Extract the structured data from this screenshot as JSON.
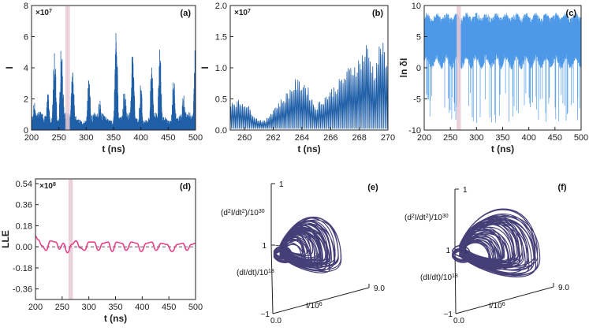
{
  "colors": {
    "trace_blue": "#1f5fa8",
    "lnd_blue": "#3a8ee6",
    "lle_pink": "#e8408a",
    "attractor": "#3b3470",
    "shade": "#e8c9d3",
    "axis": "#222222"
  },
  "chart_data": [
    {
      "id": "a",
      "type": "line",
      "panel_label": "(a)",
      "xlabel": "t (ns)",
      "ylabel": "I",
      "multiplier": "×10",
      "multiplier_exp": "7",
      "xlim": [
        200,
        500
      ],
      "ylim": [
        0,
        8
      ],
      "xticks": [
        200,
        250,
        300,
        350,
        400,
        450,
        500
      ],
      "yticks": [
        0,
        2,
        4,
        6,
        8
      ],
      "highlight_x": [
        262,
        270
      ],
      "burst_peaks": [
        {
          "t": 205,
          "I": 1.8
        },
        {
          "t": 230,
          "I": 2.4
        },
        {
          "t": 242,
          "I": 5.8
        },
        {
          "t": 255,
          "I": 6.1
        },
        {
          "t": 275,
          "I": 4.2
        },
        {
          "t": 305,
          "I": 3.6
        },
        {
          "t": 325,
          "I": 2.2
        },
        {
          "t": 355,
          "I": 6.6
        },
        {
          "t": 370,
          "I": 3.2
        },
        {
          "t": 385,
          "I": 5.6
        },
        {
          "t": 400,
          "I": 3.1
        },
        {
          "t": 420,
          "I": 4.5
        },
        {
          "t": 435,
          "I": 5.5
        },
        {
          "t": 460,
          "I": 3.8
        },
        {
          "t": 478,
          "I": 2.4
        },
        {
          "t": 500,
          "I": 5.9
        }
      ]
    },
    {
      "id": "b",
      "type": "line",
      "panel_label": "(b)",
      "xlabel": "t (ns)",
      "ylabel": "I",
      "multiplier": "×10",
      "multiplier_exp": "7",
      "xlim": [
        259,
        270
      ],
      "ylim": [
        0,
        2.0
      ],
      "xticks": [
        260,
        262,
        264,
        266,
        268,
        270
      ],
      "yticks": [
        0.0,
        0.5,
        1.0,
        1.5,
        2.0
      ],
      "envelope": [
        {
          "t": 259.0,
          "I": 0.5
        },
        {
          "t": 260.0,
          "I": 0.48
        },
        {
          "t": 260.8,
          "I": 0.2
        },
        {
          "t": 261.4,
          "I": 0.15
        },
        {
          "t": 262.0,
          "I": 0.38
        },
        {
          "t": 262.7,
          "I": 0.55
        },
        {
          "t": 263.5,
          "I": 0.82
        },
        {
          "t": 264.2,
          "I": 0.8
        },
        {
          "t": 264.9,
          "I": 0.4
        },
        {
          "t": 265.6,
          "I": 0.58
        },
        {
          "t": 266.5,
          "I": 0.8
        },
        {
          "t": 267.3,
          "I": 1.05
        },
        {
          "t": 268.0,
          "I": 1.2
        },
        {
          "t": 268.5,
          "I": 1.45
        },
        {
          "t": 269.0,
          "I": 1.0
        },
        {
          "t": 269.5,
          "I": 1.55
        },
        {
          "t": 270.0,
          "I": 0.95
        }
      ]
    },
    {
      "id": "c",
      "type": "line",
      "panel_label": "(c)",
      "xlabel": "t (ns)",
      "ylabel": "ln δI",
      "xlim": [
        200,
        500
      ],
      "ylim": [
        -10,
        10
      ],
      "xticks": [
        200,
        250,
        300,
        350,
        400,
        450,
        500
      ],
      "yticks": [
        -10,
        -5,
        0,
        5,
        10
      ],
      "highlight_x": [
        262,
        270
      ],
      "band_upper": 8.5,
      "band_lower": 0.5,
      "min_excursion": -9
    },
    {
      "id": "d",
      "type": "line",
      "panel_label": "(d)",
      "xlabel": "t (ns)",
      "ylabel": "LLE",
      "multiplier": "×10",
      "multiplier_exp": "8",
      "xlim": [
        200,
        500
      ],
      "ylim": [
        -0.45,
        0.58
      ],
      "xticks": [
        200,
        250,
        300,
        350,
        400,
        450,
        500
      ],
      "yticks": [
        0.54,
        0.36,
        0.18,
        0.0,
        -0.18,
        -0.36
      ],
      "ytick_labels": [
        "0.54",
        "0.36",
        "0.18",
        "0.00",
        "-0.18",
        "-0.36"
      ],
      "highlight_x": [
        262,
        270
      ],
      "reference_line_y": 0,
      "points": [
        {
          "t": 200,
          "v": 0.09
        },
        {
          "t": 205,
          "v": 0.06
        },
        {
          "t": 212,
          "v": 0.01
        },
        {
          "t": 220,
          "v": -0.03
        },
        {
          "t": 228,
          "v": 0.05
        },
        {
          "t": 238,
          "v": 0.04
        },
        {
          "t": 245,
          "v": -0.02
        },
        {
          "t": 252,
          "v": 0.03
        },
        {
          "t": 260,
          "v": -0.05
        },
        {
          "t": 268,
          "v": 0.02
        },
        {
          "t": 276,
          "v": 0.05
        },
        {
          "t": 284,
          "v": -0.01
        },
        {
          "t": 292,
          "v": -0.03
        },
        {
          "t": 300,
          "v": 0.04
        },
        {
          "t": 310,
          "v": 0.04
        },
        {
          "t": 318,
          "v": -0.03
        },
        {
          "t": 326,
          "v": 0.03
        },
        {
          "t": 336,
          "v": 0.04
        },
        {
          "t": 344,
          "v": -0.04
        },
        {
          "t": 352,
          "v": 0.04
        },
        {
          "t": 362,
          "v": 0.03
        },
        {
          "t": 370,
          "v": -0.03
        },
        {
          "t": 380,
          "v": 0.04
        },
        {
          "t": 390,
          "v": 0.03
        },
        {
          "t": 398,
          "v": -0.04
        },
        {
          "t": 408,
          "v": 0.03
        },
        {
          "t": 418,
          "v": 0.04
        },
        {
          "t": 426,
          "v": -0.03
        },
        {
          "t": 436,
          "v": 0.03
        },
        {
          "t": 446,
          "v": 0.02
        },
        {
          "t": 456,
          "v": -0.04
        },
        {
          "t": 466,
          "v": 0.02
        },
        {
          "t": 476,
          "v": 0.03
        },
        {
          "t": 484,
          "v": -0.03
        },
        {
          "t": 492,
          "v": 0.02
        },
        {
          "t": 500,
          "v": 0.03
        }
      ]
    },
    {
      "id": "e",
      "type": "scatter",
      "panel_label": "(e)",
      "projection": "3d-phase-portrait",
      "z_label_parts": [
        "(d",
        "2",
        "I/dt",
        "2",
        ")/10",
        "30"
      ],
      "y_label_parts": [
        "(dI/dt)/10",
        "18"
      ],
      "x_label_parts": [
        "I/10",
        "6"
      ],
      "z_ticks": [
        "1",
        "−1"
      ],
      "y_ticks": [
        "1",
        "−1"
      ],
      "x_ticks": [
        "0.0",
        "9.0"
      ]
    },
    {
      "id": "f",
      "type": "scatter",
      "panel_label": "(f)",
      "projection": "3d-phase-portrait",
      "z_label_parts": [
        "(d",
        "2",
        "I/dt",
        "2",
        ")/10",
        "30"
      ],
      "y_label_parts": [
        "(dI/dt)/10",
        "18"
      ],
      "x_label_parts": [
        "I/10",
        "6"
      ],
      "z_ticks": [
        "1",
        "−1"
      ],
      "y_ticks": [
        "1",
        "−1"
      ],
      "x_ticks": [
        "0.0",
        "9.0"
      ]
    }
  ]
}
